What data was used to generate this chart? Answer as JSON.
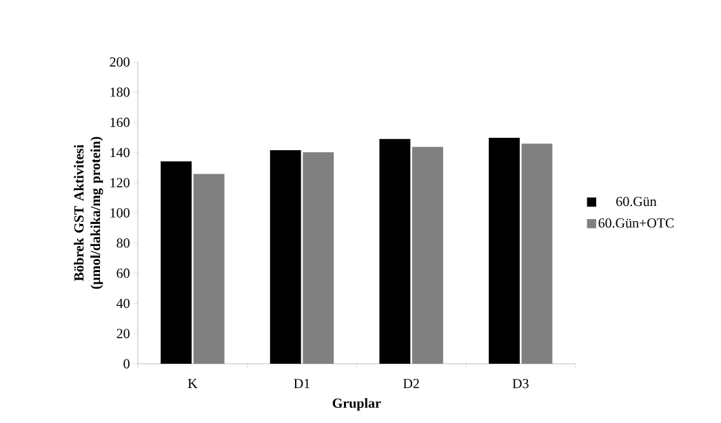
{
  "chart_data": {
    "type": "bar",
    "xlabel": "Gruplar",
    "ylabel": "Böbrek GST Aktivitesi (µmol/dakika/mg protein)",
    "categories": [
      "K",
      "D1",
      "D2",
      "D3"
    ],
    "series": [
      {
        "name": "60.Gün",
        "color": "#000000",
        "values": [
          134.1,
          141.5,
          149.0,
          149.8
        ]
      },
      {
        "name": "60.Gün+OTC",
        "color": "#808080",
        "values": [
          125.8,
          140.2,
          143.7,
          145.9
        ]
      }
    ],
    "ylim": [
      0,
      200
    ],
    "yticks": [
      0,
      20,
      40,
      60,
      80,
      100,
      120,
      140,
      160,
      180,
      200
    ],
    "legend": "right",
    "grid": false
  }
}
